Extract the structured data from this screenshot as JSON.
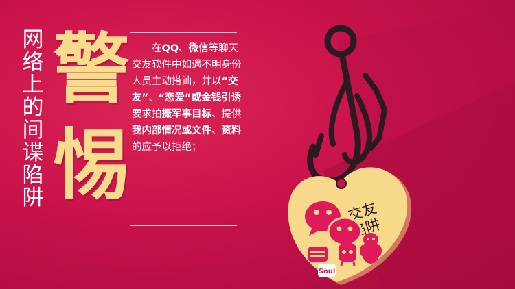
{
  "title_vertical": [
    "网",
    "络",
    "上",
    "的",
    "间",
    "谍",
    "陷",
    "阱"
  ],
  "big_chars": [
    "警",
    "惕"
  ],
  "paragraph": [
    {
      "t": "在",
      "b": false
    },
    {
      "t": "QQ",
      "b": true
    },
    {
      "t": "、",
      "b": false
    },
    {
      "t": "微信",
      "b": true
    },
    {
      "t": "等聊天交友软件中如遇不明身份人员主动搭讪，并以",
      "b": false
    },
    {
      "t": "“交友”",
      "b": true
    },
    {
      "t": "、",
      "b": false
    },
    {
      "t": "“恋爱”",
      "b": true
    },
    {
      "t": "或金钱引诱",
      "b": true
    },
    {
      "t": "要求拍",
      "b": false
    },
    {
      "t": "摄军事目标",
      "b": true
    },
    {
      "t": "、提供",
      "b": false
    },
    {
      "t": "我内部情况或文件",
      "b": true
    },
    {
      "t": "、",
      "b": false
    },
    {
      "t": "资料",
      "b": true
    },
    {
      "t": "的应予以拒绝；",
      "b": false
    }
  ],
  "heart_label_line1": "交友",
  "heart_label_line2": "陷阱",
  "soul_badge": "Soul",
  "icons": [
    "fishing-hook-icon",
    "heart-tag",
    "wechat-icon",
    "qq-penguin-icon",
    "momo-icon",
    "soul-app-icon"
  ],
  "colors": {
    "background": "#c8124a",
    "accent_yellow": "#f7dc8d",
    "heart_yellow": "#f6d98a",
    "icon_pink": "#e01a5a",
    "hook_dark": "#2b1a20"
  }
}
